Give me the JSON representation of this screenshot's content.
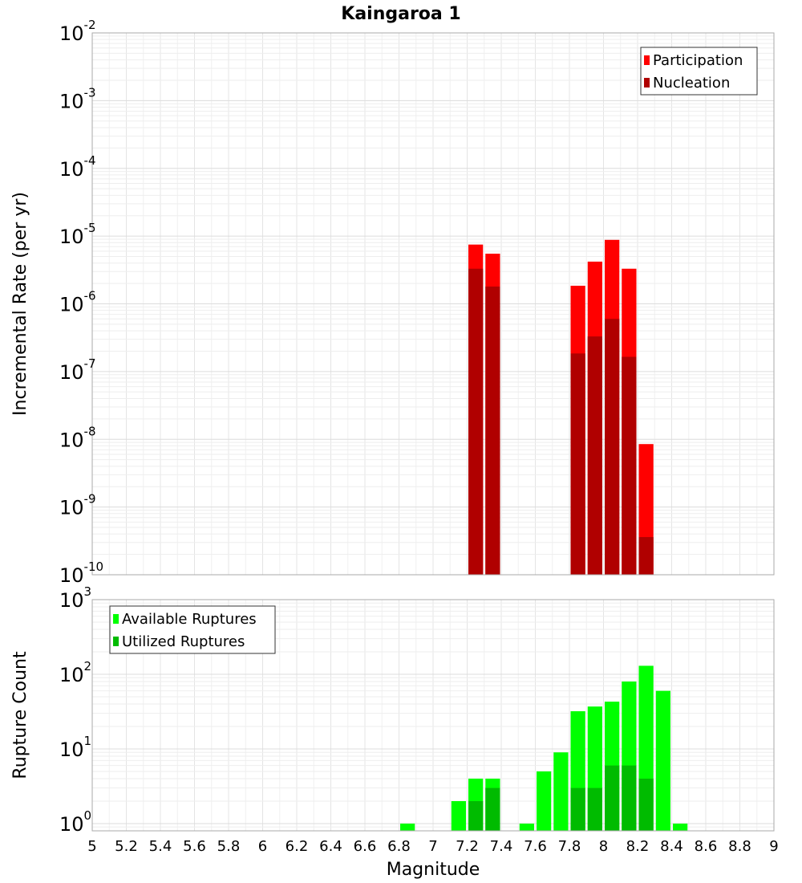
{
  "chart_data": [
    {
      "type": "bar",
      "title": "Kaingaroa 1",
      "xlabel": "",
      "ylabel": "Incremental Rate (per yr)",
      "yscale": "log",
      "ylim": [
        1e-10,
        0.01
      ],
      "xlim": [
        5,
        9
      ],
      "ytick_base": "10",
      "ytick_exponents": [
        "-10",
        "-9",
        "-8",
        "-7",
        "-6",
        "-5",
        "-4",
        "-3",
        "-2"
      ],
      "grid": true,
      "legend_position": "top-right",
      "bar_width": 0.1,
      "series": [
        {
          "name": "Participation",
          "color": "#ff0000",
          "x": [
            7.25,
            7.35,
            7.85,
            7.95,
            8.05,
            8.15,
            8.25
          ],
          "values": [
            7.5e-06,
            5.5e-06,
            1.85e-06,
            4.2e-06,
            8.8e-06,
            3.3e-06,
            8.5e-09
          ]
        },
        {
          "name": "Nucleation",
          "color": "#b00000",
          "x": [
            7.25,
            7.35,
            7.85,
            7.95,
            8.05,
            8.15,
            8.25
          ],
          "values": [
            3.3e-06,
            1.8e-06,
            1.85e-07,
            3.3e-07,
            6e-07,
            1.65e-07,
            3.6e-10
          ]
        }
      ]
    },
    {
      "type": "bar",
      "title": "",
      "xlabel": "Magnitude",
      "ylabel": "Rupture Count",
      "yscale": "log",
      "ylim": [
        0.8,
        1000
      ],
      "xlim": [
        5,
        9
      ],
      "ytick_base": "10",
      "ytick_exponents": [
        "0",
        "1",
        "2",
        "3"
      ],
      "xticks": [
        "5",
        "5.2",
        "5.4",
        "5.6",
        "5.8",
        "6",
        "6.2",
        "6.4",
        "6.6",
        "6.8",
        "7",
        "7.2",
        "7.4",
        "7.6",
        "7.8",
        "8",
        "8.2",
        "8.4",
        "8.6",
        "8.8",
        "9"
      ],
      "grid": true,
      "legend_position": "top-left",
      "bar_width": 0.1,
      "series": [
        {
          "name": "Available Ruptures",
          "color": "#00ff00",
          "x": [
            6.85,
            7.15,
            7.25,
            7.35,
            7.55,
            7.65,
            7.75,
            7.85,
            7.95,
            8.05,
            8.15,
            8.25,
            8.35,
            8.45
          ],
          "values": [
            1,
            2,
            4,
            4,
            1,
            5,
            9,
            32,
            37,
            43,
            80,
            130,
            60,
            1
          ]
        },
        {
          "name": "Utilized Ruptures",
          "color": "#00bb00",
          "x": [
            7.25,
            7.35,
            7.85,
            7.95,
            8.05,
            8.15,
            8.25
          ],
          "values": [
            2,
            3,
            3,
            3,
            6,
            6,
            4
          ]
        }
      ]
    }
  ]
}
